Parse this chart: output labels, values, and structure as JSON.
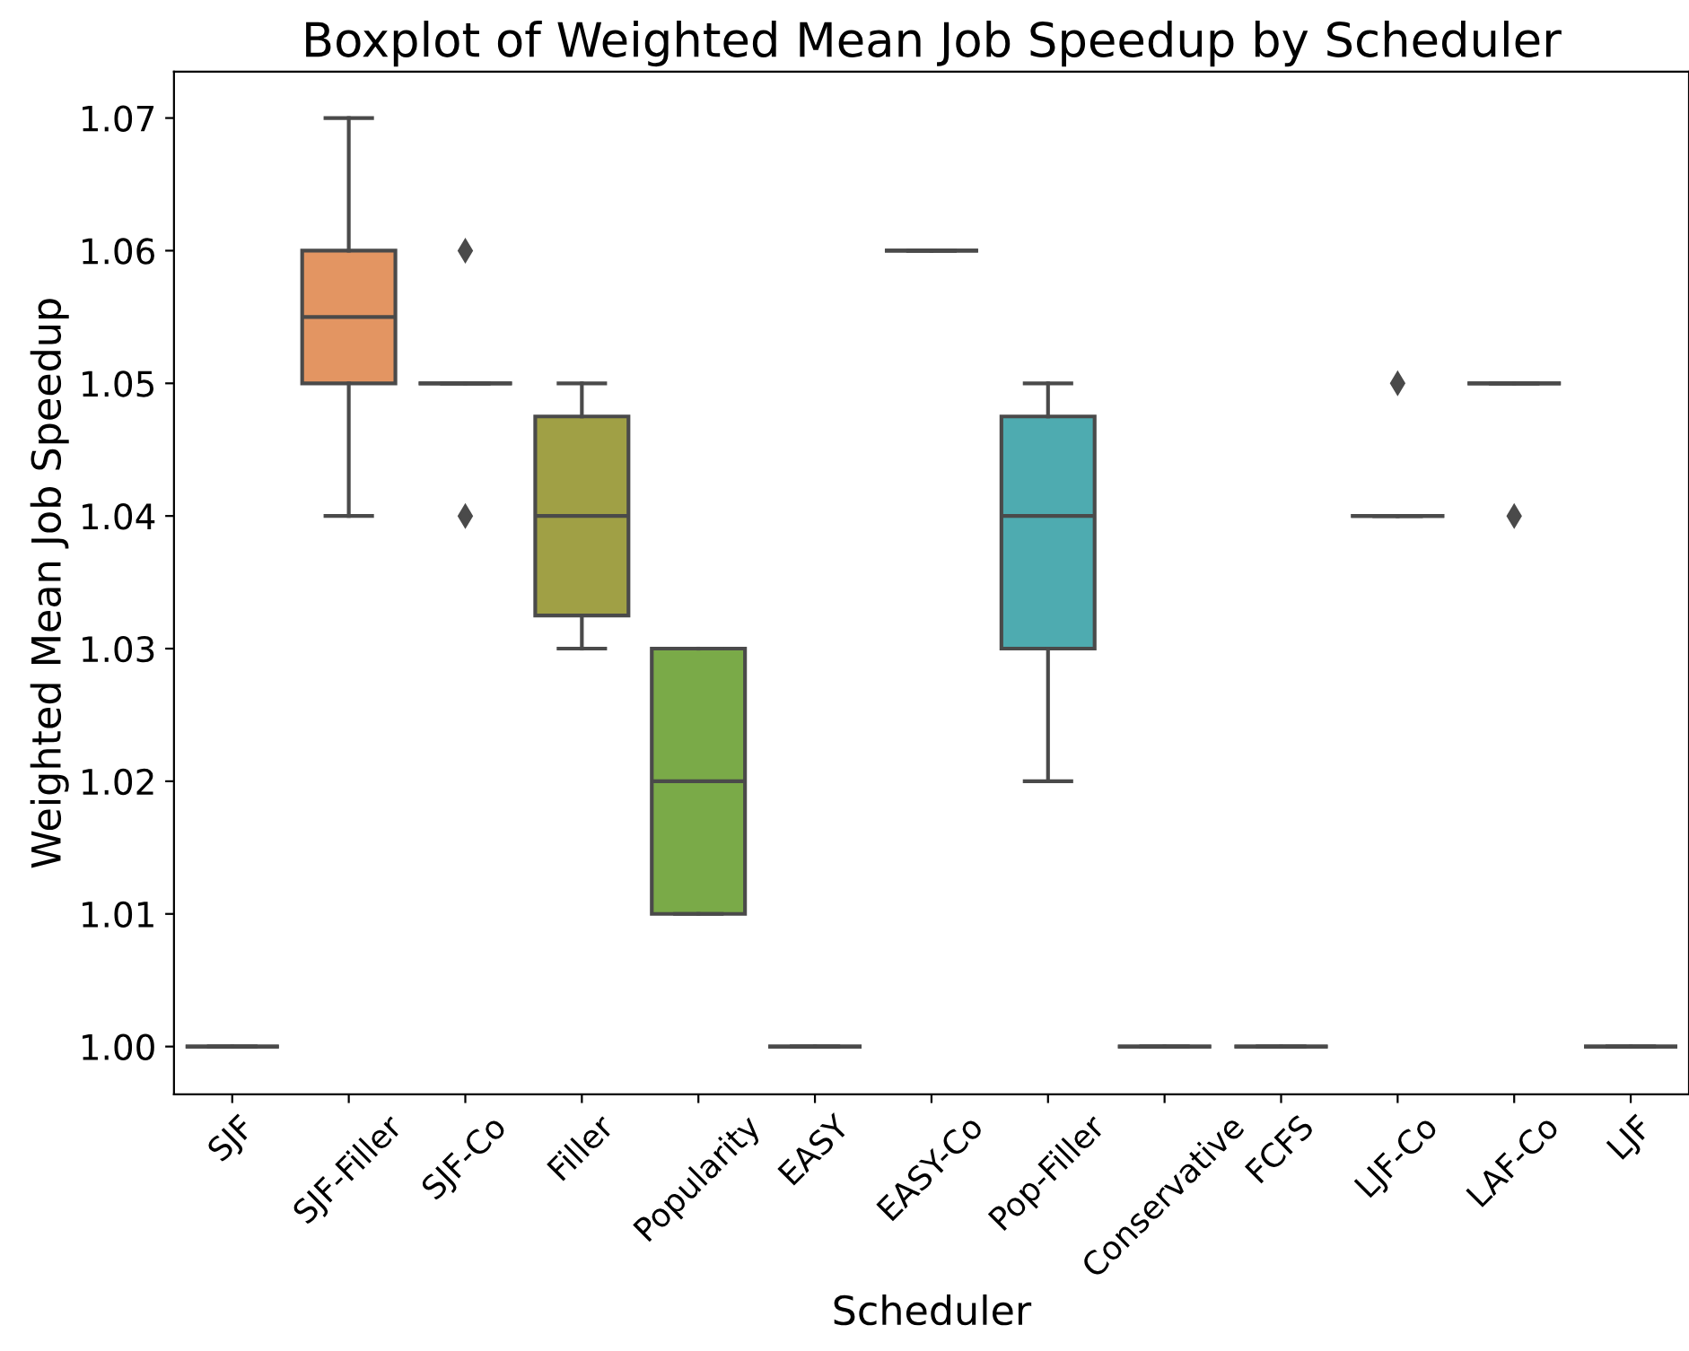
{
  "chart_data": {
    "type": "box",
    "title": "Boxplot of Weighted Mean Job Speedup by Scheduler",
    "xlabel": "Scheduler",
    "ylabel": "Weighted Mean Job Speedup",
    "categories": [
      "SJF",
      "SJF-Filler",
      "SJF-Co",
      "Filler",
      "Popularity",
      "EASY",
      "EASY-Co",
      "Pop-Filler",
      "Conservative",
      "FCFS",
      "LJF-Co",
      "LAF-Co",
      "LJF"
    ],
    "boxes": [
      {
        "low": 1.0,
        "q1": 1.0,
        "median": 1.0,
        "q3": 1.0,
        "high": 1.0
      },
      {
        "low": 1.04,
        "q1": 1.05,
        "median": 1.055,
        "q3": 1.06,
        "high": 1.07
      },
      {
        "low": 1.05,
        "q1": 1.05,
        "median": 1.05,
        "q3": 1.05,
        "high": 1.05,
        "outliers": [
          1.06,
          1.04
        ]
      },
      {
        "low": 1.03,
        "q1": 1.0325,
        "median": 1.04,
        "q3": 1.0475,
        "high": 1.05
      },
      {
        "low": 1.01,
        "q1": 1.01,
        "median": 1.02,
        "q3": 1.03,
        "high": 1.03
      },
      {
        "low": 1.0,
        "q1": 1.0,
        "median": 1.0,
        "q3": 1.0,
        "high": 1.0
      },
      {
        "low": 1.06,
        "q1": 1.06,
        "median": 1.06,
        "q3": 1.06,
        "high": 1.06
      },
      {
        "low": 1.02,
        "q1": 1.03,
        "median": 1.04,
        "q3": 1.0475,
        "high": 1.05
      },
      {
        "low": 1.0,
        "q1": 1.0,
        "median": 1.0,
        "q3": 1.0,
        "high": 1.0
      },
      {
        "low": 1.0,
        "q1": 1.0,
        "median": 1.0,
        "q3": 1.0,
        "high": 1.0
      },
      {
        "low": 1.04,
        "q1": 1.04,
        "median": 1.04,
        "q3": 1.04,
        "high": 1.04,
        "outliers": [
          1.05
        ]
      },
      {
        "low": 1.05,
        "q1": 1.05,
        "median": 1.05,
        "q3": 1.05,
        "high": 1.05,
        "outliers": [
          1.04
        ]
      },
      {
        "low": 1.0,
        "q1": 1.0,
        "median": 1.0,
        "q3": 1.0,
        "high": 1.0
      }
    ],
    "colors": [
      null,
      "#e39562",
      null,
      "#a0a045",
      "#7aaa48",
      null,
      null,
      "#4eabb0",
      null,
      null,
      null,
      null,
      null
    ],
    "ylim": [
      0.9964,
      1.0735
    ],
    "yticks": [
      {
        "value": 1.0,
        "label": "1.00"
      },
      1.01,
      1.02,
      1.03,
      1.04,
      1.05,
      1.06,
      1.07
    ],
    "grid": false,
    "legend": false
  }
}
